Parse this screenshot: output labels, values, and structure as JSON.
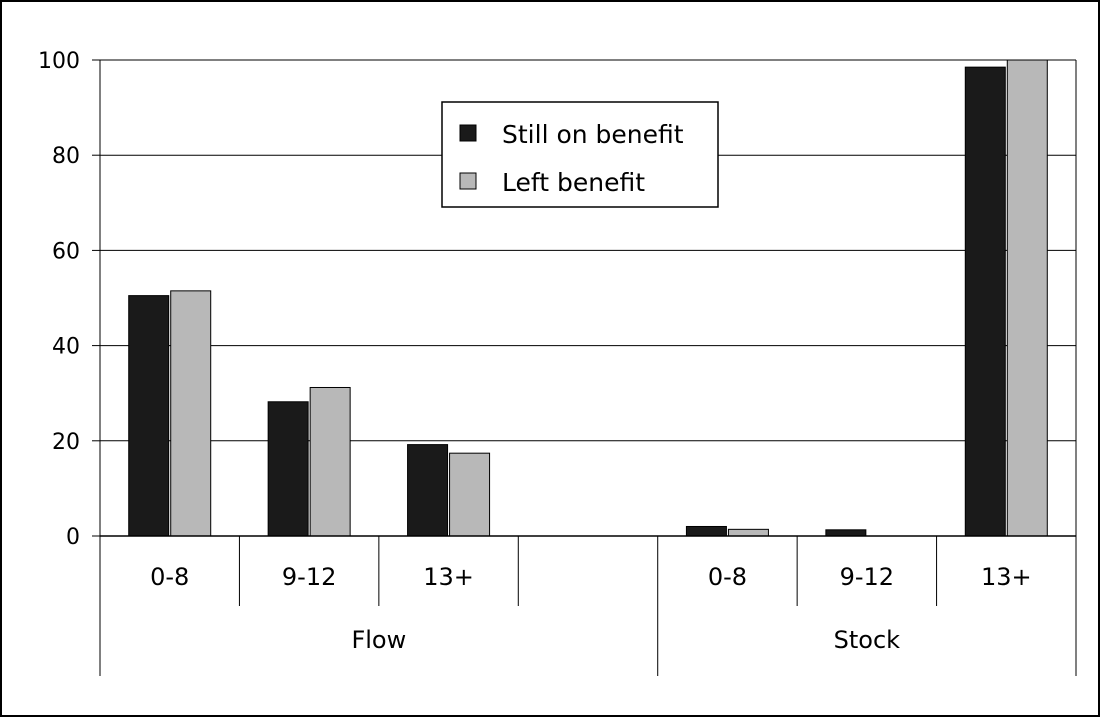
{
  "chart_data": {
    "type": "bar",
    "title": "",
    "xlabel": "",
    "ylabel": "",
    "ylim": [
      0,
      100
    ],
    "yticks": [
      0,
      20,
      40,
      60,
      80,
      100
    ],
    "grid": true,
    "legend_position": "top-center",
    "groups": [
      {
        "label": "Flow",
        "categories": [
          "0-8",
          "9-12",
          "13+",
          ""
        ]
      },
      {
        "label": "Stock",
        "categories": [
          "0-8",
          "9-12",
          "13+"
        ]
      }
    ],
    "categories": [
      "0-8",
      "9-12",
      "13+",
      "",
      "0-8",
      "9-12",
      "13+"
    ],
    "series": [
      {
        "name": "Still on benefit",
        "color": "#1a1a1a",
        "values": [
          50.5,
          28.2,
          19.2,
          null,
          2.0,
          1.3,
          98.5
        ]
      },
      {
        "name": "Left benefit",
        "color": "#b8b8b8",
        "values": [
          51.5,
          31.2,
          17.4,
          null,
          1.4,
          0,
          100
        ]
      }
    ]
  }
}
